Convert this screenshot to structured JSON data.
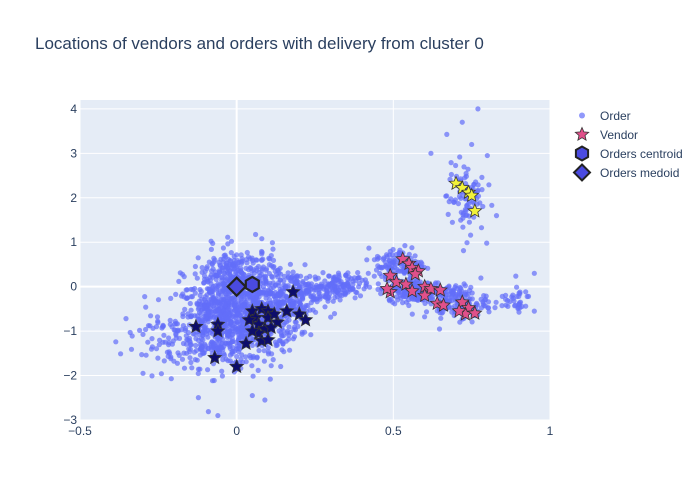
{
  "chart_data": {
    "type": "scatter",
    "title": "Locations of vendors and orders with delivery from cluster 0",
    "xlabel": "",
    "ylabel": "",
    "xlim": [
      -0.5,
      1
    ],
    "ylim": [
      -3,
      4.2
    ],
    "x_ticks": [
      "−0.5",
      "0",
      "0.5",
      "1"
    ],
    "x_tick_values": [
      -0.5,
      0,
      0.5,
      1
    ],
    "y_ticks": [
      "−3",
      "−2",
      "−1",
      "0",
      "1",
      "2",
      "3",
      "4"
    ],
    "y_tick_values": [
      -3,
      -2,
      -1,
      0,
      1,
      2,
      3,
      4
    ],
    "grid": true,
    "legend_position": "right",
    "colors": {
      "order": "#636efa",
      "vendor_pink": "#e0508a",
      "vendor_navy": "#0d0d6b",
      "vendor_yellow": "#f2f23a",
      "centroid": "#4a4ae0",
      "medoid": "#4a4ae0",
      "plot_bg": "#e5ecf6"
    },
    "series": [
      {
        "name": "Order",
        "marker": "circle",
        "clusters": [
          {
            "cx": -0.05,
            "cy": -0.8,
            "sx": 0.07,
            "sy": 0.5,
            "n": 650
          },
          {
            "cx": 0.08,
            "cy": -0.6,
            "sx": 0.06,
            "sy": 0.45,
            "n": 450
          },
          {
            "cx": 0.0,
            "cy": 0.3,
            "sx": 0.07,
            "sy": 0.3,
            "n": 220
          },
          {
            "cx": 0.2,
            "cy": -0.15,
            "sx": 0.06,
            "sy": 0.25,
            "n": 180
          },
          {
            "cx": 0.32,
            "cy": 0.0,
            "sx": 0.05,
            "sy": 0.15,
            "n": 120
          },
          {
            "cx": 0.52,
            "cy": 0.5,
            "sx": 0.04,
            "sy": 0.2,
            "n": 140
          },
          {
            "cx": 0.58,
            "cy": -0.1,
            "sx": 0.05,
            "sy": 0.12,
            "n": 200
          },
          {
            "cx": 0.7,
            "cy": -0.35,
            "sx": 0.05,
            "sy": 0.2,
            "n": 150
          },
          {
            "cx": 0.73,
            "cy": 2.0,
            "sx": 0.03,
            "sy": 0.4,
            "n": 90
          },
          {
            "cx": -0.25,
            "cy": -1.2,
            "sx": 0.06,
            "sy": 0.35,
            "n": 60
          },
          {
            "cx": 0.88,
            "cy": -0.3,
            "sx": 0.03,
            "sy": 0.15,
            "n": 35
          }
        ],
        "outliers": [
          [
            0.77,
            4.0
          ],
          [
            0.72,
            3.7
          ],
          [
            0.75,
            3.2
          ],
          [
            0.62,
            3.0
          ],
          [
            0.8,
            2.95
          ],
          [
            -0.06,
            -2.9
          ],
          [
            0.09,
            -2.55
          ],
          [
            0.05,
            -2.45
          ],
          [
            0.95,
            -0.55
          ],
          [
            0.95,
            0.3
          ]
        ]
      },
      {
        "name": "Vendor",
        "marker": "star",
        "points": [
          [
            0.53,
            0.62
          ],
          [
            0.55,
            0.52
          ],
          [
            0.56,
            0.42
          ],
          [
            0.58,
            0.35
          ],
          [
            0.49,
            0.25
          ],
          [
            0.57,
            0.28
          ],
          [
            0.51,
            0.1
          ],
          [
            0.54,
            0.05
          ],
          [
            0.6,
            0.0
          ],
          [
            0.56,
            -0.1
          ],
          [
            0.62,
            -0.05
          ],
          [
            0.49,
            -0.12
          ],
          [
            0.48,
            -0.05
          ],
          [
            0.65,
            -0.08
          ],
          [
            0.6,
            -0.2
          ],
          [
            0.64,
            -0.38
          ],
          [
            0.66,
            -0.42
          ],
          [
            0.72,
            -0.35
          ],
          [
            0.74,
            -0.48
          ],
          [
            0.73,
            -0.62
          ],
          [
            0.76,
            -0.6
          ],
          [
            0.71,
            -0.55
          ],
          [
            0.7,
            2.32
          ],
          [
            0.72,
            2.22
          ],
          [
            0.74,
            2.12
          ],
          [
            0.75,
            2.05
          ],
          [
            0.76,
            1.7
          ],
          [
            -0.06,
            -0.85
          ],
          [
            -0.06,
            -1.0
          ],
          [
            -0.13,
            -0.9
          ],
          [
            -0.07,
            -1.6
          ],
          [
            0.0,
            -1.8
          ],
          [
            0.03,
            -1.28
          ],
          [
            0.05,
            -0.55
          ],
          [
            0.06,
            -0.7
          ],
          [
            0.07,
            -0.85
          ],
          [
            0.08,
            -0.5
          ],
          [
            0.1,
            -0.55
          ],
          [
            0.09,
            -0.95
          ],
          [
            0.07,
            -1.05
          ],
          [
            0.08,
            -1.22
          ],
          [
            0.1,
            -1.2
          ],
          [
            0.13,
            -0.8
          ],
          [
            0.16,
            -0.55
          ],
          [
            0.2,
            -0.62
          ],
          [
            0.22,
            -0.75
          ],
          [
            0.18,
            -0.12
          ],
          [
            0.11,
            -0.92
          ],
          [
            0.05,
            -1.0
          ],
          [
            0.1,
            -0.7
          ],
          [
            0.12,
            -0.62
          ],
          [
            0.04,
            -0.75
          ]
        ]
      },
      {
        "name": "Orders centroid",
        "marker": "hexagon",
        "points": [
          [
            0.05,
            0.05
          ]
        ]
      },
      {
        "name": "Orders medoid",
        "marker": "diamond",
        "points": [
          [
            0.0,
            0.0
          ]
        ]
      }
    ]
  }
}
